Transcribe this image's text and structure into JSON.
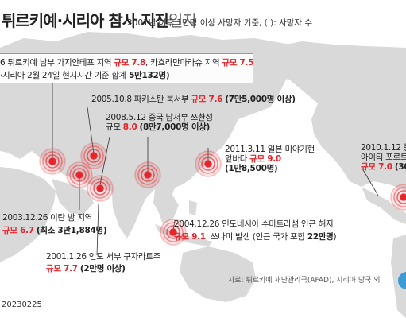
{
  "title": {
    "main": "튀르키예·시리아 참사 지진",
    "suffix": "일지"
  },
  "subtitle": "2001년 이후 1만명 이상 사망자 기준, ( ): 사망자 수",
  "box": {
    "line1": {
      "a": "6 튀르키예 남부 가지안테프 지역 ",
      "b": "규모 7.8",
      "c": ", 카흐라만마라슈 지역 ",
      "d": "규모 7.5"
    },
    "line2": {
      "a": "·시리아 2월 24일 현지시간 기준 합계 ",
      "b": "5만132명)"
    }
  },
  "quakes": [
    {
      "date": "2005.10.8",
      "place": "파키스탄 북서부",
      "mag": "규모 7.6",
      "deaths": "(7만5,000명 이상)"
    },
    {
      "date": "2008.5.12",
      "place": "중국 남서부 쓰촨성",
      "mag_prefix": "규모",
      "mag": "8.0",
      "deaths": "(8만7,000명 이상)"
    },
    {
      "date": "2011.3.11",
      "place": "일본 미야기현",
      "place2": "앞바다",
      "mag": "규모 9.0",
      "deaths": "(1만8,500명)"
    },
    {
      "date": "2010.1.12",
      "place": "중",
      "place2": "아이티 포르토",
      "mag": "규모 7.0",
      "deaths": "(30"
    },
    {
      "date": "2003.12.26",
      "place": "이란 밤 지역",
      "mag": "규모 6.7",
      "deaths": "(최소 3만1,884명)"
    },
    {
      "date": "2004.12.26",
      "place": "인도네시아 수마트라섬 인근 해저",
      "mag": "규모 9.1",
      "deaths_pre": ". 쓰나미 발생 (인근 국가 포함 ",
      "deaths": "22만명",
      "deaths_post": ")"
    },
    {
      "date": "2001.1.26",
      "place": "인도 서부 구자라트주",
      "mag": "규모 7.7",
      "deaths": "(2만명 이상)"
    }
  ],
  "source": "자료: 튀르키예 재난관리국(AFAD), 시리아 당국 외",
  "date_code": "20230225",
  "colors": {
    "red": "#e8242b",
    "land": "#d7d7d7",
    "ring": "#e8242b"
  },
  "marker_icon": "concentric-circle-epicenter-icon"
}
